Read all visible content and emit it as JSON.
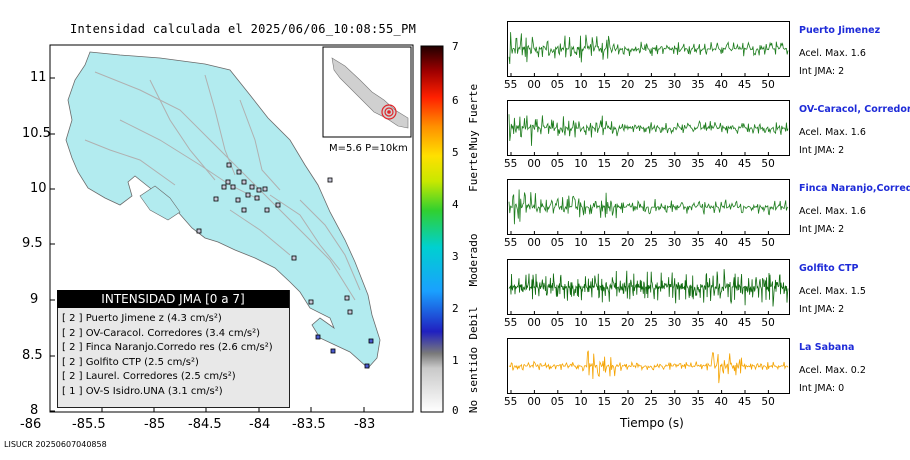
{
  "title": "Intensidad calculada el 2025/06/06_10:08:55_PM",
  "footer_id": "LISUCR 20250607040858",
  "map": {
    "x_ticks": [
      "-86",
      "-85.5",
      "-85",
      "-84.5",
      "-84",
      "-83.5",
      "-83"
    ],
    "y_ticks": [
      "11",
      "10.5",
      "10",
      "9.5",
      "9",
      "8.5",
      "8"
    ],
    "inset_label": "M=5.6 P=10km",
    "colors": {
      "land": "#b2ebef",
      "sea": "#ffffff",
      "epicenter": "#e0252a"
    }
  },
  "scale": {
    "numbers": [
      "7",
      "6",
      "5",
      "4",
      "3",
      "2",
      "1",
      "0"
    ],
    "labels": [
      "Muy Fuerte",
      "Fuerte",
      "Moderado",
      "Debil",
      "No sentido"
    ]
  },
  "legend": {
    "title": "INTENSIDAD JMA [0 a 7]",
    "rows": [
      "[ 2 ]  Puerto Jimene z (4.3 cm/s²)",
      "[ 2 ]  OV-Caracol. Corredores (3.4 cm/s²)",
      "[ 2 ]  Finca Naranjo.Corredo res (2.6 cm/s²)",
      "[ 2 ]  Golfito CTP (2.5 cm/s²)",
      "[ 2 ]  Laurel. Corredores (2.5 cm/s²)",
      "[ 1 ]  OV-S Isidro.UNA (3.1 cm/s²)"
    ]
  },
  "time_ticks": [
    "55",
    "00",
    "05",
    "10",
    "15",
    "20",
    "25",
    "30",
    "35",
    "40",
    "45",
    "50"
  ],
  "xlabel": "Tiempo (s)",
  "stations": [
    {
      "name": "Puerto Jimenez",
      "accel": "Acel. Max. 1.6",
      "jma": "Int JMA: 2",
      "color": "#1e7d1e"
    },
    {
      "name": "OV-Caracol, Corredores",
      "accel": "Acel. Max. 1.6",
      "jma": "Int JMA: 2",
      "color": "#1e7d1e"
    },
    {
      "name": "Finca Naranjo,Corredores",
      "accel": "Acel. Max. 1.6",
      "jma": "Int JMA: 2",
      "color": "#1e7d1e"
    },
    {
      "name": "Golfito CTP",
      "accel": "Acel. Max. 1.5",
      "jma": "Int JMA: 2",
      "color": "#0f6a0f"
    },
    {
      "name": "La Sabana",
      "accel": "Acel. Max. 0.2",
      "jma": "Int JMA: 0",
      "color": "#f5a300"
    }
  ]
}
